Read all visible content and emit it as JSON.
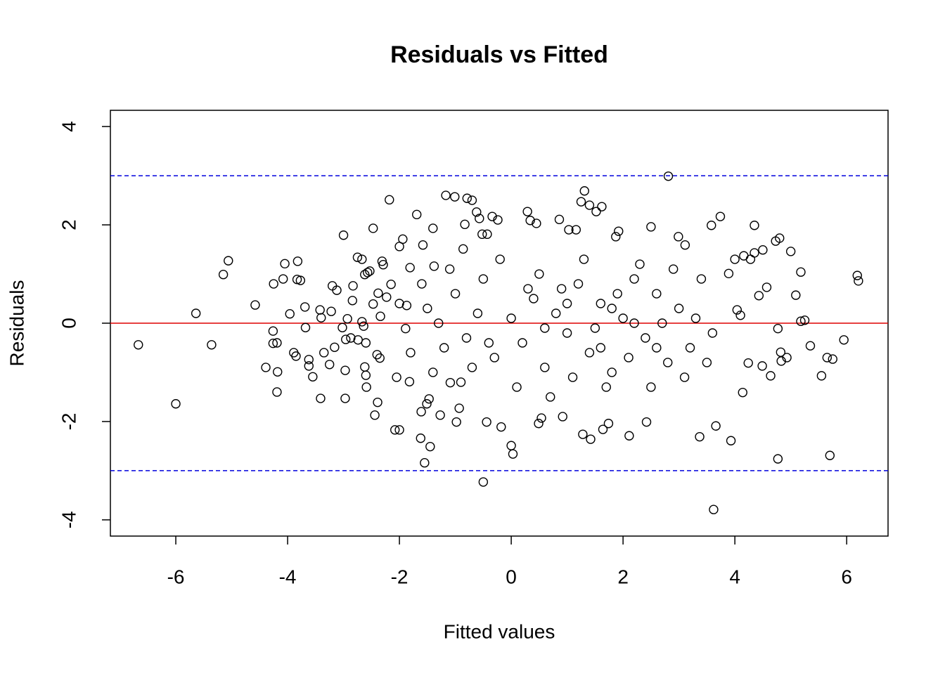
{
  "chart_data": {
    "type": "scatter",
    "title": "Residuals vs Fitted",
    "x_label": "Fitted values",
    "y_label": "Residuals",
    "color": "#000000",
    "x": [
      -6.67,
      -6.0,
      -5.64,
      -5.36,
      -5.15,
      -5.06,
      -4.58,
      -4.39,
      -4.26,
      -4.26,
      -4.25,
      -4.19,
      -4.19,
      -4.18,
      -4.08,
      -4.05,
      -3.96,
      -3.89,
      -3.85,
      -3.83,
      -3.82,
      -3.77,
      -3.69,
      -3.68,
      -3.62,
      -3.62,
      -3.55,
      -3.42,
      -3.41,
      -3.4,
      -3.35,
      -3.25,
      -3.22,
      -3.2,
      -3.16,
      -3.12,
      -3.02,
      -3.0,
      -2.97,
      -2.97,
      -2.96,
      -2.93,
      -2.87,
      -2.84,
      -2.83,
      -2.75,
      -2.74,
      -2.67,
      -2.67,
      -2.64,
      -2.62,
      -2.62,
      -2.6,
      -2.6,
      -2.59,
      -2.57,
      -2.53,
      -2.47,
      -2.47,
      -2.44,
      -2.4,
      -2.39,
      -2.38,
      -2.35,
      -2.34,
      -2.31,
      -2.29,
      -2.23,
      -2.18,
      -2.15,
      -2.08,
      -2.05,
      -2.0,
      -2.0,
      -1.94,
      -1.89,
      -1.87,
      -1.82,
      -1.81,
      -1.69,
      -1.62,
      -1.61,
      -1.58,
      -1.55,
      -1.51,
      -1.47,
      -1.45,
      -1.4,
      -1.38,
      -1.27,
      -1.17,
      -1.09,
      -1.01,
      -0.98,
      -0.93,
      -0.86,
      -0.83,
      -0.79,
      -0.7,
      -0.62,
      -0.57,
      -0.52,
      -0.5,
      -0.44,
      -0.43,
      -0.34,
      -0.24,
      -0.18,
      0,
      0.03,
      0.29,
      0.34,
      0.45,
      0.49,
      0.54,
      0.86,
      0.92,
      1.03,
      1.16,
      1.25,
      1.31,
      1.28,
      1.4,
      1.42,
      1.52,
      1.62,
      1.64,
      1.74,
      1.87,
      1.92,
      2.11,
      2.5,
      2.42,
      2.81,
      2.99,
      3.11,
      3.37,
      3.58,
      3.62,
      3.66,
      3.74,
      3.89,
      3.93,
      4.0,
      4.04,
      4.1,
      4.14,
      4.16,
      4.24,
      4.28,
      4.35,
      4.35,
      4.43,
      4.49,
      4.5,
      4.57,
      4.64,
      4.73,
      4.77,
      4.77,
      4.8,
      4.82,
      4.83,
      4.93,
      5.0,
      5.09,
      5.18,
      5.18,
      5.25,
      5.35,
      5.55,
      5.65,
      5.7,
      5.75,
      5.95,
      6.19,
      6.21,
      -1.5,
      -1.2,
      -1.0,
      -0.8,
      -0.5,
      -0.3,
      0,
      0.2,
      0.4,
      0.6,
      0.8,
      1.0,
      1.2,
      1.4,
      1.6,
      1.8,
      2.0,
      2.2,
      2.4,
      2.6,
      2.8,
      3.0,
      3.2,
      3.4,
      3.6,
      -1.8,
      -1.6,
      -1.1,
      -0.9,
      -0.6,
      -0.2,
      0.1,
      0.5,
      0.7,
      0.9,
      1.1,
      1.3,
      1.5,
      1.7,
      1.9,
      2.1,
      2.3,
      2.5,
      2.7,
      2.9,
      3.1,
      3.3,
      3.5,
      -2.0,
      -1.4,
      -0.7,
      0.3,
      1.0,
      1.8,
      2.6,
      -1.3,
      -0.4,
      0.6,
      1.6,
      2.2
    ],
    "y": [
      -0.44,
      -1.64,
      0.2,
      -0.44,
      0.99,
      1.27,
      0.37,
      -0.9,
      -0.16,
      -0.41,
      0.8,
      -0.4,
      -1.4,
      -0.99,
      0.9,
      1.21,
      0.19,
      -0.6,
      -0.67,
      0.89,
      1.26,
      0.87,
      0.33,
      -0.09,
      -0.74,
      -0.87,
      -1.09,
      0.27,
      -1.53,
      0.11,
      -0.6,
      -0.84,
      0.24,
      0.76,
      -0.49,
      0.67,
      -0.09,
      1.79,
      -1.53,
      -0.96,
      -0.33,
      0.09,
      -0.3,
      0.46,
      0.76,
      1.34,
      -0.34,
      1.3,
      0.03,
      -0.06,
      -0.89,
      0.99,
      -1.06,
      -0.4,
      -1.3,
      1.03,
      1.06,
      1.93,
      0.39,
      -1.87,
      -0.64,
      -1.61,
      0.61,
      -0.71,
      0.14,
      1.26,
      1.19,
      0.53,
      2.51,
      0.79,
      -2.17,
      -1.1,
      -2.17,
      1.56,
      1.71,
      -0.11,
      0.36,
      -1.19,
      1.13,
      2.21,
      -2.34,
      -1.8,
      1.59,
      -2.84,
      -1.64,
      -1.54,
      -2.51,
      1.93,
      1.16,
      -1.87,
      2.6,
      -1.21,
      2.57,
      -2.01,
      -1.73,
      1.51,
      2.01,
      2.54,
      2.5,
      2.26,
      2.13,
      1.81,
      -3.23,
      -2.01,
      1.81,
      2.17,
      2.1,
      -2.11,
      -2.49,
      -2.66,
      2.27,
      2.09,
      2.03,
      -2.04,
      -1.93,
      2.11,
      -1.9,
      1.9,
      1.9,
      2.47,
      2.69,
      -2.26,
      2.4,
      -2.36,
      2.27,
      2.37,
      -2.16,
      -2.04,
      1.76,
      1.87,
      -2.29,
      1.96,
      -2.01,
      2.99,
      1.76,
      1.59,
      -2.31,
      1.99,
      -3.79,
      -2.09,
      2.17,
      1.01,
      -2.39,
      1.3,
      0.27,
      0.16,
      -1.41,
      1.37,
      -0.81,
      1.3,
      1.43,
      1.99,
      0.56,
      -0.87,
      1.49,
      0.73,
      -1.07,
      1.67,
      -0.11,
      -2.76,
      1.73,
      -0.59,
      -0.77,
      -0.7,
      1.46,
      0.57,
      1.04,
      0.04,
      0.06,
      -0.46,
      -1.07,
      -0.7,
      -2.69,
      -0.73,
      -0.34,
      0.97,
      0.86,
      0.3,
      -0.5,
      0.6,
      -0.3,
      0.9,
      -0.7,
      0.1,
      -0.4,
      0.5,
      -0.9,
      0.2,
      -0.2,
      0.8,
      -0.6,
      0.4,
      -1.0,
      0.1,
      0.9,
      -0.3,
      0.6,
      -0.8,
      0.3,
      -0.5,
      0.9,
      -0.2,
      -0.6,
      0.8,
      1.1,
      -1.2,
      0.2,
      1.3,
      -1.3,
      1.0,
      -1.5,
      0.7,
      -1.1,
      1.3,
      -0.1,
      -1.3,
      0.6,
      -0.7,
      1.2,
      -1.3,
      0.0,
      1.1,
      -1.1,
      0.1,
      -0.8,
      0.4,
      -1.0,
      -0.9,
      0.7,
      0.4,
      0.3,
      -0.5,
      0.0,
      -0.4,
      -0.1,
      -0.5,
      0.0
    ],
    "xlim": [
      -7.17,
      6.74
    ],
    "ylim": [
      -4.33,
      4.33
    ],
    "xticks": [
      -6,
      -4,
      -2,
      0,
      2,
      4,
      6
    ],
    "yticks": [
      -4,
      -2,
      0,
      2,
      4
    ],
    "hlines": [
      {
        "value": 0,
        "color": "#dd0000",
        "dashed": false
      },
      {
        "value": 3,
        "color": "#0000dd",
        "dashed": true
      },
      {
        "value": -3,
        "color": "#0000dd",
        "dashed": true
      }
    ]
  }
}
